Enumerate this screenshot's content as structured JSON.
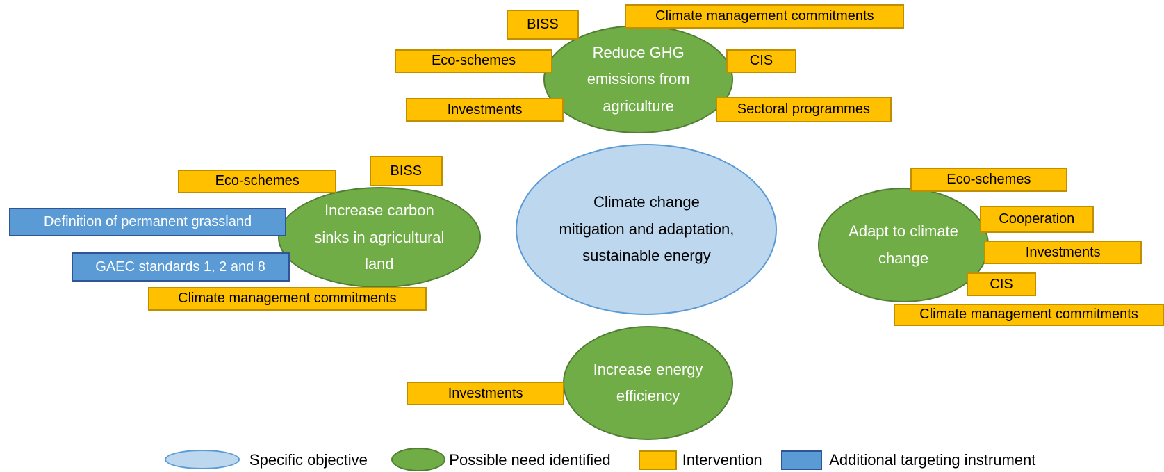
{
  "objective": "Climate change mitigation and adaptation, sustainable energy",
  "needs": [
    {
      "label": "Reduce GHG emissions from agriculture",
      "interventions": [
        {
          "label": "BISS",
          "color": "#ffc000"
        },
        {
          "label": "Climate management commitments",
          "color": "#ffc000"
        },
        {
          "label": "Eco-schemes",
          "color": "#ffc000"
        },
        {
          "label": "CIS",
          "color": "#ffc000"
        },
        {
          "label": "Investments",
          "color": "#ffc000"
        },
        {
          "label": "Sectoral programmes",
          "color": "#ffc000"
        }
      ]
    },
    {
      "label": "Increase carbon sinks in agricultural land",
      "interventions": [
        {
          "label": "Eco-schemes",
          "color": "#ffc000"
        },
        {
          "label": "BISS",
          "color": "#ffc000"
        },
        {
          "label": "Definition  of permanent grassland",
          "color": "#5b9bd5"
        },
        {
          "label": "GAEC standards 1, 2 and 8",
          "color": "#5b9bd5"
        },
        {
          "label": "Climate management commitments",
          "color": "#ffc000"
        }
      ]
    },
    {
      "label": "Adapt to climate change",
      "interventions": [
        {
          "label": "Eco-schemes",
          "color": "#ffc000"
        },
        {
          "label": "Cooperation",
          "color": "#ffc000"
        },
        {
          "label": "Investments",
          "color": "#ffc000"
        },
        {
          "label": "CIS",
          "color": "#ffc000"
        },
        {
          "label": "Climate management commitments",
          "color": "#ffc000"
        }
      ]
    },
    {
      "label": "Increase energy efficiency",
      "interventions": [
        {
          "label": "Investments",
          "color": "#ffc000"
        }
      ]
    }
  ],
  "legend": [
    {
      "label": "Specific objective"
    },
    {
      "label": "Possible need identified"
    },
    {
      "label": "Intervention"
    },
    {
      "label": "Additional targeting instrument"
    }
  ]
}
